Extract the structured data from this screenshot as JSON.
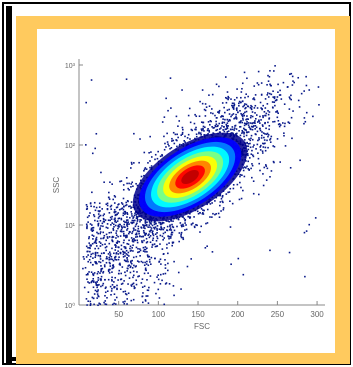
{
  "chart_data": {
    "type": "scatter",
    "xlabel": "FSC",
    "ylabel": "SSC",
    "xlim": [
      0,
      310
    ],
    "ylim": [
      0,
      3
    ],
    "y_scale": "log",
    "x_ticks": [
      "50",
      "100",
      "150",
      "200",
      "250",
      "300"
    ],
    "y_ticks": [
      "10⁰",
      "10¹",
      "10²",
      "10³"
    ],
    "density_center": {
      "x": 140,
      "y": 1.6
    },
    "colormap": [
      "#00008b",
      "#0000ff",
      "#0080ff",
      "#00ffff",
      "#80ff80",
      "#ffff00",
      "#ff8000",
      "#ff0000",
      "#c00000"
    ],
    "colors": {
      "frame": "#000000",
      "mat": "#ffca5e",
      "points": "#0a1a8a"
    }
  }
}
